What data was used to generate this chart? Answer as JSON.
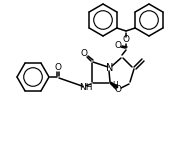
{
  "background": "#ffffff",
  "line_color": "#000000",
  "lw": 1.1,
  "figsize": [
    1.83,
    1.52
  ],
  "dpi": 100,
  "xlim": [
    0,
    183
  ],
  "ylim": [
    0,
    152
  ]
}
